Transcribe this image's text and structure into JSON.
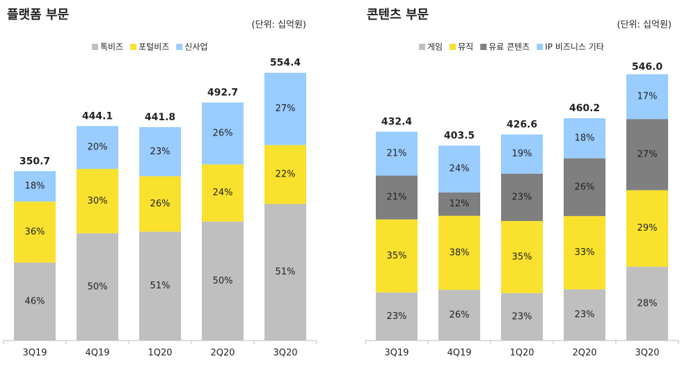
{
  "chart_data": [
    {
      "type": "bar",
      "title": "플랫폼 부문",
      "unit": "(단위: 십억원)",
      "categories": [
        "3Q19",
        "4Q19",
        "1Q20",
        "2Q20",
        "3Q20"
      ],
      "totals": [
        350.7,
        444.1,
        441.8,
        492.7,
        554.4
      ],
      "total_labels": [
        "350.7",
        "444.1",
        "441.8",
        "492.7",
        "554.4"
      ],
      "series": [
        {
          "name": "톡비즈",
          "color": "#bfbfbf",
          "values": [
            46,
            50,
            51,
            50,
            51
          ],
          "value_labels": [
            "46%",
            "50%",
            "51%",
            "50%",
            "51%"
          ]
        },
        {
          "name": "포털비즈",
          "color": "#f9e12e",
          "values": [
            36,
            30,
            26,
            24,
            22
          ],
          "value_labels": [
            "36%",
            "30%",
            "26%",
            "24%",
            "22%"
          ]
        },
        {
          "name": "신사업",
          "color": "#99ccff",
          "values": [
            18,
            20,
            23,
            26,
            27
          ],
          "value_labels": [
            "18%",
            "20%",
            "23%",
            "26%",
            "27%"
          ]
        }
      ]
    },
    {
      "type": "bar",
      "title": "콘텐츠 부문",
      "unit": "(단위: 십억원)",
      "categories": [
        "3Q19",
        "4Q19",
        "1Q20",
        "2Q20",
        "3Q20"
      ],
      "totals": [
        432.4,
        403.5,
        426.6,
        460.2,
        546.0
      ],
      "total_labels": [
        "432.4",
        "403.5",
        "426.6",
        "460.2",
        "546.0"
      ],
      "series": [
        {
          "name": "게임",
          "color": "#bfbfbf",
          "values": [
            23,
            26,
            23,
            23,
            28
          ],
          "value_labels": [
            "23%",
            "26%",
            "23%",
            "23%",
            "28%"
          ]
        },
        {
          "name": "뮤직",
          "color": "#f9e12e",
          "values": [
            35,
            38,
            35,
            33,
            29
          ],
          "value_labels": [
            "35%",
            "38%",
            "35%",
            "33%",
            "29%"
          ]
        },
        {
          "name": "유료 콘텐츠",
          "color": "#7f7f7f",
          "values": [
            21,
            12,
            23,
            26,
            27
          ],
          "value_labels": [
            "21%",
            "12%",
            "23%",
            "26%",
            "27%"
          ]
        },
        {
          "name": "IP 비즈니스 기타",
          "color": "#99ccff",
          "values": [
            21,
            24,
            19,
            18,
            17
          ],
          "value_labels": [
            "21%",
            "24%",
            "19%",
            "18%",
            "17%"
          ]
        }
      ]
    }
  ]
}
